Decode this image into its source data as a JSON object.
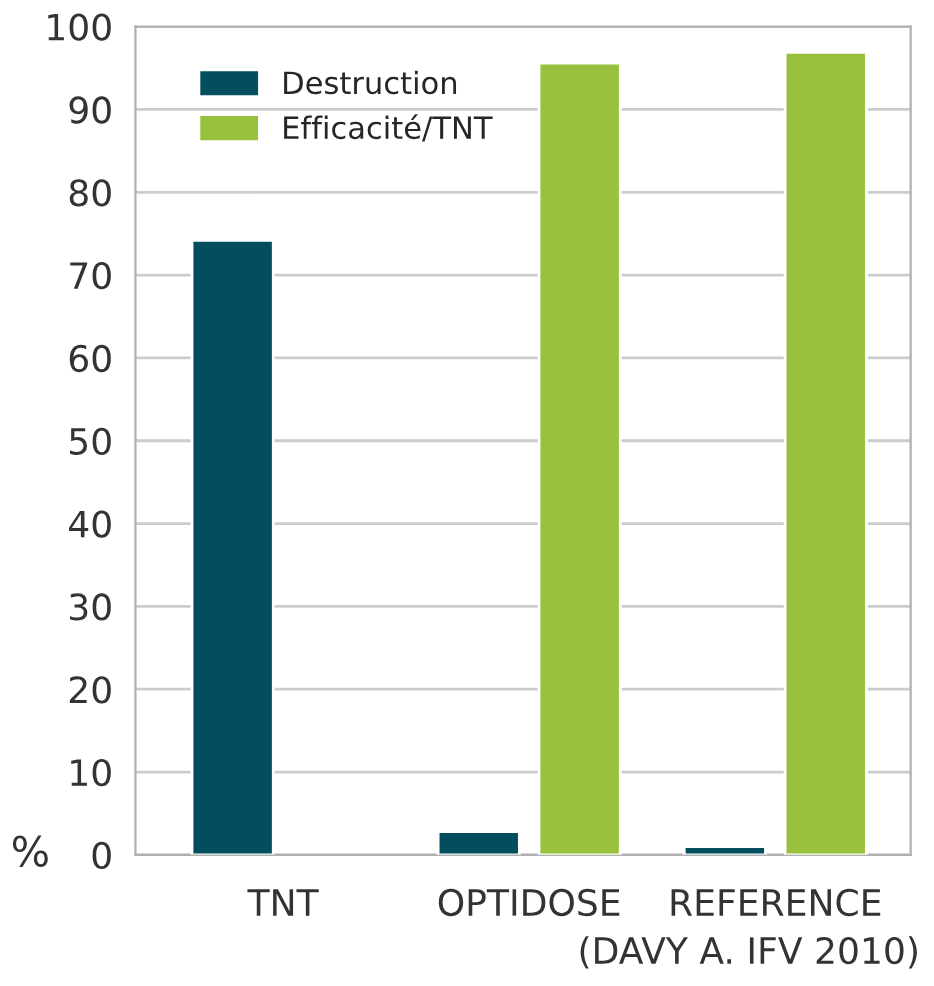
{
  "chart_data": {
    "type": "bar",
    "categories": [
      "TNT",
      "OPTIDOSE",
      "REFERENCE"
    ],
    "series": [
      {
        "name": "Destruction",
        "color": "#024e5f",
        "values": [
          74.2,
          2.8,
          1.0
        ]
      },
      {
        "name": "Efficacité/TNT",
        "color": "#98c13d",
        "values": [
          null,
          95.6,
          96.9
        ]
      }
    ],
    "ylabel": "%",
    "ylim": [
      0,
      100
    ],
    "yticks": [
      0,
      10,
      20,
      30,
      40,
      50,
      60,
      70,
      80,
      90,
      100
    ],
    "grid": "y",
    "legend": "top left",
    "annotations": [
      "(DAVY A. IFV 2010)"
    ]
  }
}
